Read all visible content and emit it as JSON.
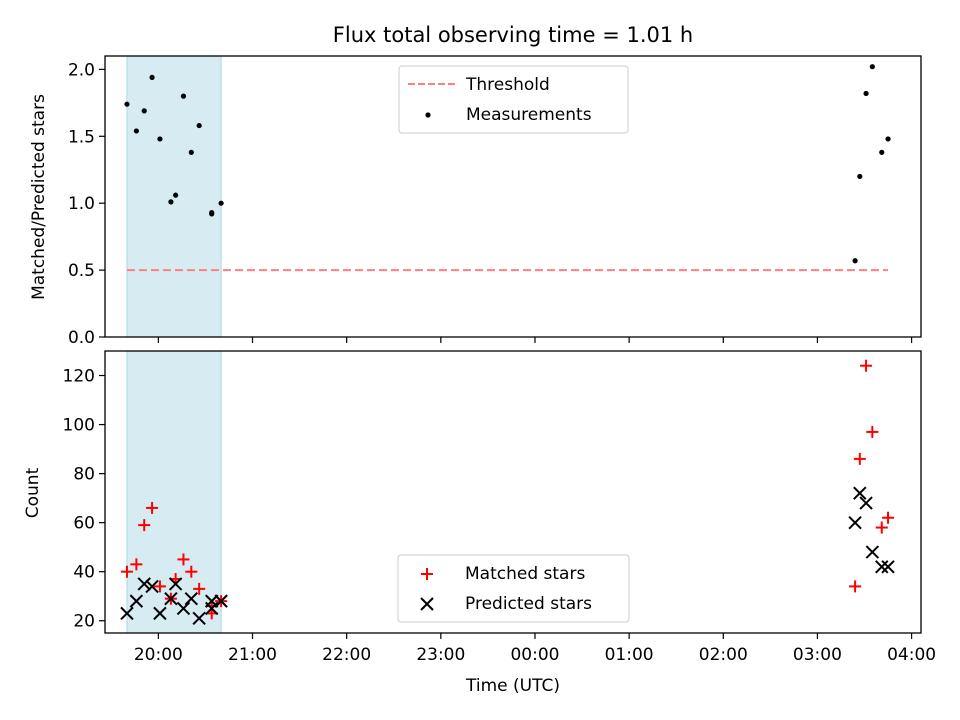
{
  "chart_data": [
    {
      "type": "scatter",
      "title": "Flux total observing time = 1.01 h",
      "ylabel": "Matched/Predicted stars",
      "xlabel": "",
      "xlim": [
        "19:26",
        "04:06"
      ],
      "ylim": [
        0,
        2.1
      ],
      "yticks": [
        "0.0",
        "0.5",
        "1.0",
        "1.5",
        "2.0"
      ],
      "shaded_span": [
        "19:40",
        "20:40"
      ],
      "grid": false,
      "legend": {
        "placement": "top-center",
        "entries": [
          "Threshold",
          "Measurements"
        ]
      },
      "series": [
        {
          "name": "Threshold",
          "style": "dashed-line",
          "color": "#ff7f7f",
          "points": [
            {
              "x": "19:40",
              "y": 0.5
            },
            {
              "x": "03:45",
              "y": 0.5
            }
          ]
        },
        {
          "name": "Measurements",
          "style": "dot",
          "color": "#000000",
          "points": [
            {
              "x": "19:40",
              "y": 1.74
            },
            {
              "x": "19:46",
              "y": 1.54
            },
            {
              "x": "19:51",
              "y": 1.69
            },
            {
              "x": "19:56",
              "y": 1.94
            },
            {
              "x": "20:01",
              "y": 1.48
            },
            {
              "x": "20:08",
              "y": 1.01
            },
            {
              "x": "20:11",
              "y": 1.06
            },
            {
              "x": "20:16",
              "y": 1.8
            },
            {
              "x": "20:21",
              "y": 1.38
            },
            {
              "x": "20:26",
              "y": 1.58
            },
            {
              "x": "20:34",
              "y": 0.92
            },
            {
              "x": "20:34",
              "y": 0.93
            },
            {
              "x": "20:40",
              "y": 1.0
            },
            {
              "x": "03:24",
              "y": 0.57
            },
            {
              "x": "03:27",
              "y": 1.2
            },
            {
              "x": "03:31",
              "y": 1.82
            },
            {
              "x": "03:35",
              "y": 2.02
            },
            {
              "x": "03:41",
              "y": 1.38
            },
            {
              "x": "03:45",
              "y": 1.48
            }
          ]
        }
      ]
    },
    {
      "type": "scatter",
      "title": "",
      "ylabel": "Count",
      "xlabel": "Time (UTC)",
      "xlim": [
        "19:26",
        "04:06"
      ],
      "ylim": [
        15,
        130
      ],
      "yticks": [
        "20",
        "40",
        "60",
        "80",
        "100",
        "120"
      ],
      "xticks": [
        "20:00",
        "21:00",
        "22:00",
        "23:00",
        "00:00",
        "01:00",
        "02:00",
        "03:00",
        "04:00"
      ],
      "shaded_span": [
        "19:40",
        "20:40"
      ],
      "grid": false,
      "legend": {
        "placement": "bottom-center",
        "entries": [
          "Matched stars",
          "Predicted stars"
        ]
      },
      "series": [
        {
          "name": "Matched stars",
          "marker": "plus",
          "color": "#ff0000",
          "points": [
            {
              "x": "19:40",
              "y": 40
            },
            {
              "x": "19:46",
              "y": 43
            },
            {
              "x": "19:51",
              "y": 59
            },
            {
              "x": "19:56",
              "y": 66
            },
            {
              "x": "20:01",
              "y": 34
            },
            {
              "x": "20:08",
              "y": 29
            },
            {
              "x": "20:11",
              "y": 37
            },
            {
              "x": "20:16",
              "y": 45
            },
            {
              "x": "20:21",
              "y": 40
            },
            {
              "x": "20:26",
              "y": 33
            },
            {
              "x": "20:34",
              "y": 23
            },
            {
              "x": "20:34",
              "y": 26
            },
            {
              "x": "20:40",
              "y": 28
            },
            {
              "x": "03:24",
              "y": 34
            },
            {
              "x": "03:27",
              "y": 86
            },
            {
              "x": "03:31",
              "y": 124
            },
            {
              "x": "03:35",
              "y": 97
            },
            {
              "x": "03:41",
              "y": 58
            },
            {
              "x": "03:45",
              "y": 62
            }
          ]
        },
        {
          "name": "Predicted stars",
          "marker": "x",
          "color": "#000000",
          "points": [
            {
              "x": "19:40",
              "y": 23
            },
            {
              "x": "19:46",
              "y": 28
            },
            {
              "x": "19:51",
              "y": 35
            },
            {
              "x": "19:56",
              "y": 34
            },
            {
              "x": "20:01",
              "y": 23
            },
            {
              "x": "20:08",
              "y": 29
            },
            {
              "x": "20:11",
              "y": 35
            },
            {
              "x": "20:16",
              "y": 25
            },
            {
              "x": "20:21",
              "y": 29
            },
            {
              "x": "20:26",
              "y": 21
            },
            {
              "x": "20:34",
              "y": 25
            },
            {
              "x": "20:34",
              "y": 28
            },
            {
              "x": "20:40",
              "y": 28
            },
            {
              "x": "03:24",
              "y": 60
            },
            {
              "x": "03:27",
              "y": 72
            },
            {
              "x": "03:31",
              "y": 68
            },
            {
              "x": "03:35",
              "y": 48
            },
            {
              "x": "03:41",
              "y": 42
            },
            {
              "x": "03:45",
              "y": 42
            }
          ]
        }
      ]
    }
  ]
}
